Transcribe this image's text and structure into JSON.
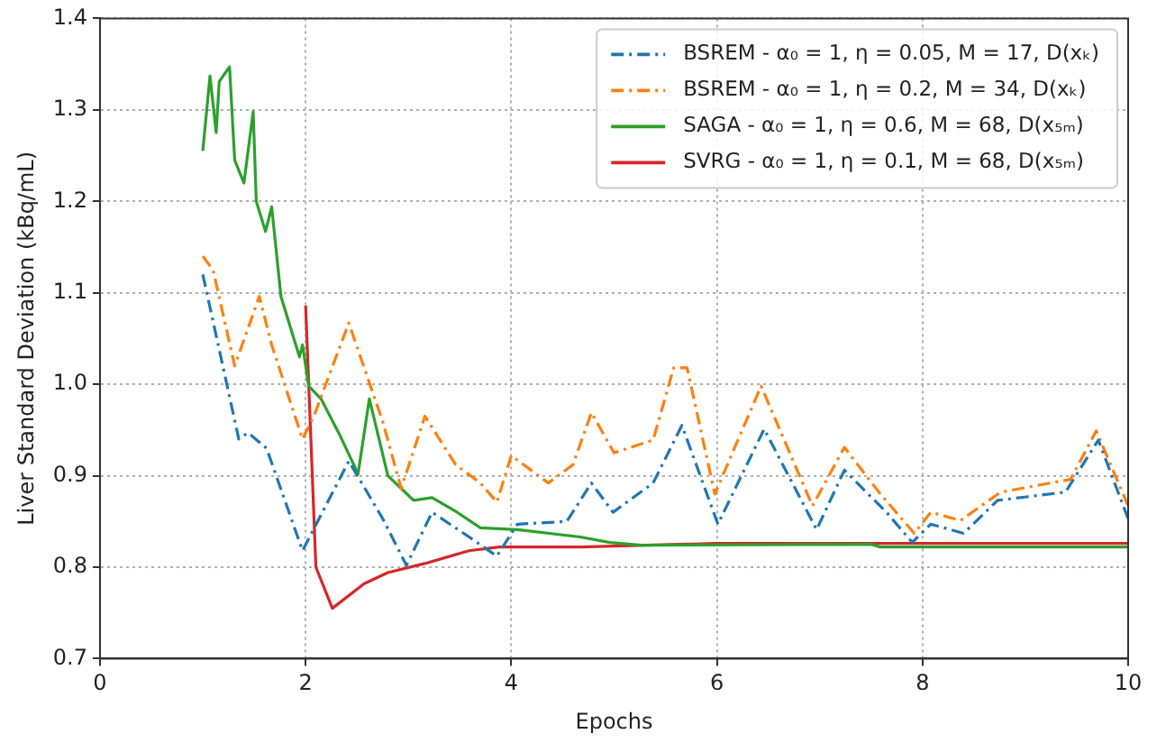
{
  "chart_data": {
    "type": "line",
    "xlabel": "Epochs",
    "ylabel": "Liver Standard Deviation (kBq/mL)",
    "xlim": [
      0,
      10
    ],
    "xticks": [
      0,
      2,
      4,
      6,
      8,
      10
    ],
    "ylim": [
      0.7,
      1.4
    ],
    "yticks": [
      0.7,
      0.8,
      0.9,
      {
        "value": 1,
        "label": "1.0"
      },
      1.1,
      1.2,
      1.3,
      1.4
    ],
    "grid": true,
    "legend": "top right",
    "marker": "none",
    "series": [
      {
        "name": "BSREM - α₀ = 1, η = 0.05, M = 17, D(xₖ)",
        "color": "#1f77b4",
        "line_style": "dashed",
        "x": [
          1.0,
          1.35,
          1.44,
          1.62,
          1.97,
          2.42,
          2.75,
          2.98,
          3.23,
          3.59,
          3.86,
          4.06,
          4.54,
          4.78,
          4.99,
          5.38,
          5.66,
          6.01,
          6.46,
          6.97,
          7.24,
          7.65,
          7.9,
          8.08,
          8.4,
          8.73,
          9.39,
          9.71,
          10.0
        ],
        "values": [
          1.12,
          0.94,
          0.947,
          0.93,
          0.818,
          0.916,
          0.853,
          0.802,
          0.86,
          0.833,
          0.812,
          0.847,
          0.85,
          0.892,
          0.86,
          0.892,
          0.955,
          0.847,
          0.951,
          0.841,
          0.906,
          0.86,
          0.827,
          0.847,
          0.837,
          0.873,
          0.882,
          0.939,
          0.853
        ]
      },
      {
        "name": "BSREM - α₀ = 1, η = 0.2, M = 34, D(xₖ)",
        "color": "#ff7f0e",
        "line_style": "dashed",
        "x": [
          1.0,
          1.1,
          1.31,
          1.55,
          1.67,
          1.97,
          2.08,
          2.42,
          2.75,
          2.93,
          3.16,
          3.46,
          3.7,
          3.86,
          4.0,
          4.36,
          4.6,
          4.78,
          5.0,
          5.38,
          5.58,
          5.71,
          5.98,
          6.43,
          6.93,
          7.24,
          7.59,
          7.92,
          8.08,
          8.37,
          8.76,
          9.44,
          9.69,
          10.0
        ],
        "values": [
          1.14,
          1.125,
          1.02,
          1.096,
          1.043,
          0.94,
          0.965,
          1.067,
          0.959,
          0.886,
          0.965,
          0.912,
          0.892,
          0.871,
          0.922,
          0.892,
          0.912,
          0.969,
          0.925,
          0.939,
          1.018,
          1.018,
          0.88,
          0.998,
          0.867,
          0.931,
          0.88,
          0.837,
          0.86,
          0.851,
          0.882,
          0.896,
          0.949,
          0.867
        ]
      },
      {
        "name": "SAGA - α₀ = 1, η = 0.6, M = 68, D(x₅ₘ)",
        "color": "#2ca02c",
        "line_style": "solid",
        "x": [
          1.0,
          1.07,
          1.13,
          1.16,
          1.26,
          1.31,
          1.4,
          1.49,
          1.52,
          1.61,
          1.67,
          1.76,
          1.85,
          1.94,
          1.97,
          2.03,
          2.15,
          2.33,
          2.51,
          2.62,
          2.8,
          2.93,
          3.05,
          3.23,
          3.46,
          3.7,
          4.06,
          4.67,
          4.96,
          5.26,
          7.5,
          7.59,
          10.0
        ],
        "values": [
          1.255,
          1.337,
          1.275,
          1.331,
          1.347,
          1.245,
          1.22,
          1.298,
          1.2,
          1.167,
          1.194,
          1.096,
          1.063,
          1.03,
          1.043,
          0.998,
          0.984,
          0.945,
          0.902,
          0.984,
          0.9,
          0.886,
          0.873,
          0.876,
          0.861,
          0.843,
          0.841,
          0.833,
          0.827,
          0.824,
          0.825,
          0.822,
          0.822
        ]
      },
      {
        "name": "SVRG - α₀ = 1, η = 0.1, M = 68, D(x₅ₘ)",
        "color": "#d62728",
        "line_style": "solid",
        "x": [
          2.0,
          2.1,
          2.26,
          2.57,
          2.8,
          3.16,
          3.59,
          3.88,
          4.67,
          6.0,
          10.0
        ],
        "values": [
          1.086,
          0.8,
          0.755,
          0.782,
          0.794,
          0.804,
          0.818,
          0.822,
          0.822,
          0.826,
          0.826
        ]
      }
    ]
  }
}
